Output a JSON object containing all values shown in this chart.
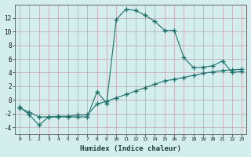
{
  "xlabel": "Humidex (Indice chaleur)",
  "background_color": "#d4eeee",
  "grid_color": "#c0a0b0",
  "line_color": "#1a7068",
  "xlim": [
    -0.5,
    23.5
  ],
  "ylim": [
    -5,
    14
  ],
  "yticks": [
    -4,
    -2,
    0,
    2,
    4,
    6,
    8,
    10,
    12
  ],
  "xticks": [
    0,
    1,
    2,
    3,
    4,
    5,
    6,
    7,
    8,
    9,
    10,
    11,
    12,
    13,
    14,
    15,
    16,
    17,
    18,
    19,
    20,
    21,
    22,
    23
  ],
  "curve1_x": [
    0,
    1,
    2,
    3,
    4,
    5,
    6,
    7,
    8,
    9,
    10,
    11,
    12,
    13,
    14,
    15,
    16,
    17,
    18,
    19,
    20,
    21,
    22,
    23
  ],
  "curve1_y": [
    -1,
    -2.2,
    -3.7,
    -2.5,
    -2.5,
    -2.5,
    -2.5,
    -2.5,
    1.2,
    -0.5,
    11.8,
    13.3,
    13.1,
    12.4,
    11.5,
    10.2,
    10.2,
    6.2,
    4.7,
    4.8,
    5.0,
    5.7,
    4.0,
    4.2
  ],
  "curve2_x": [
    0,
    1,
    2,
    3,
    4,
    5,
    6,
    7,
    8,
    9,
    10,
    11,
    12,
    13,
    14,
    15,
    16,
    17,
    18,
    19,
    20,
    21,
    22,
    23
  ],
  "curve2_y": [
    -1.2,
    -1.8,
    -2.5,
    -2.5,
    -2.4,
    -2.4,
    -2.2,
    -2.2,
    -0.6,
    -0.2,
    0.3,
    0.8,
    1.3,
    1.8,
    2.3,
    2.8,
    3.0,
    3.3,
    3.6,
    3.9,
    4.1,
    4.3,
    4.4,
    4.5
  ]
}
